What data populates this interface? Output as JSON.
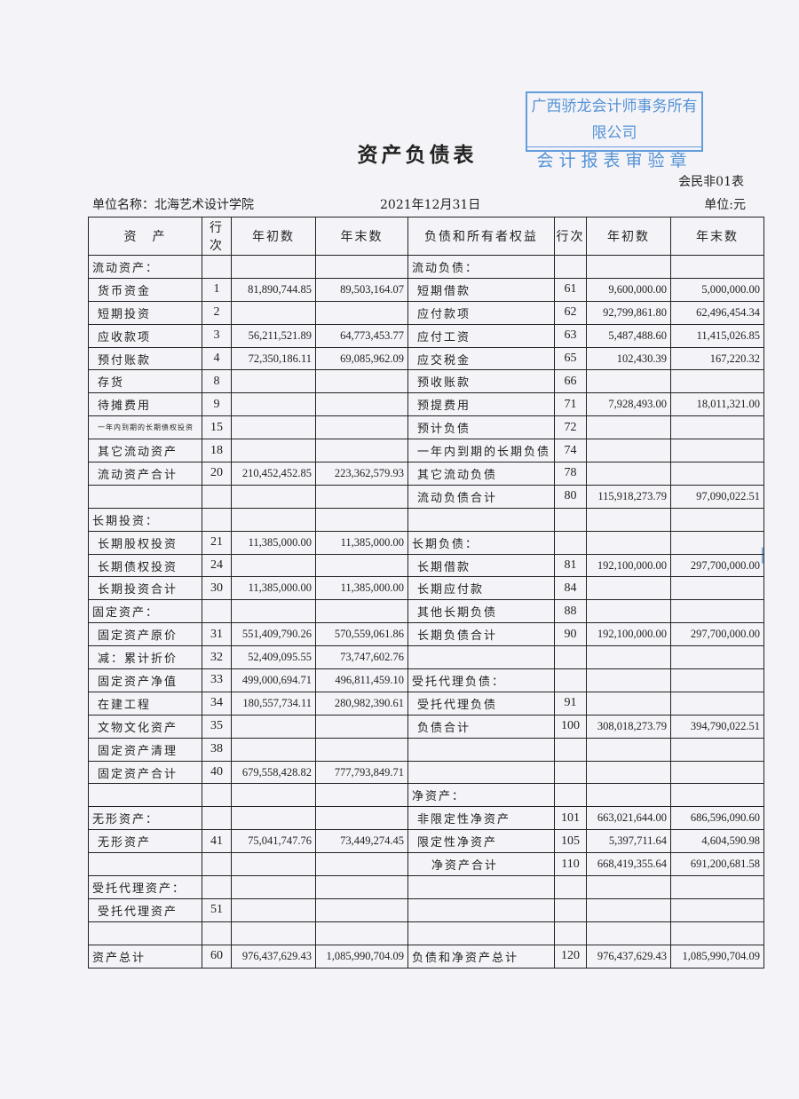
{
  "header": {
    "title": "资产负债表",
    "form_no": "会民非01表",
    "unit_name": "单位名称：北海艺术设计学院",
    "date": "2021年12月31日",
    "unit": "单位:元"
  },
  "stamp": {
    "line1": "广西骄龙会计师事务所有限公司",
    "line2": "会计报表审验章",
    "color": "#3a82d0"
  },
  "columns": [
    "资　产",
    "行次",
    "年初数",
    "年末数",
    "负债和所有者权益",
    "行次",
    "年初数",
    "年末数"
  ],
  "rows": [
    {
      "left": [
        "流动资产：",
        "",
        "",
        ""
      ],
      "right": [
        "流动负债：",
        "",
        "",
        ""
      ]
    },
    {
      "left": [
        "货币资金",
        "1",
        "81,890,744.85",
        "89,503,164.07"
      ],
      "right": [
        "短期借款",
        "61",
        "9,600,000.00",
        "5,000,000.00"
      ]
    },
    {
      "left": [
        "短期投资",
        "2",
        "",
        ""
      ],
      "right": [
        "应付款项",
        "62",
        "92,799,861.80",
        "62,496,454.34"
      ]
    },
    {
      "left": [
        "应收款项",
        "3",
        "56,211,521.89",
        "64,773,453.77"
      ],
      "right": [
        "应付工资",
        "63",
        "5,487,488.60",
        "11,415,026.85"
      ]
    },
    {
      "left": [
        "预付账款",
        "4",
        "72,350,186.11",
        "69,085,962.09"
      ],
      "right": [
        "应交税金",
        "65",
        "102,430.39",
        "167,220.32"
      ]
    },
    {
      "left": [
        "存货",
        "8",
        "",
        ""
      ],
      "right": [
        "预收账款",
        "66",
        "",
        ""
      ]
    },
    {
      "left": [
        "待摊费用",
        "9",
        "",
        ""
      ],
      "right": [
        "预提费用",
        "71",
        "7,928,493.00",
        "18,011,321.00"
      ]
    },
    {
      "left": [
        "一年内到期的长期债权投资",
        "15",
        "",
        ""
      ],
      "right": [
        "预计负债",
        "72",
        "",
        ""
      ]
    },
    {
      "left": [
        "其它流动资产",
        "18",
        "",
        ""
      ],
      "right": [
        "一年内到期的长期负债",
        "74",
        "",
        ""
      ]
    },
    {
      "left": [
        "流动资产合计",
        "20",
        "210,452,452.85",
        "223,362,579.93"
      ],
      "right": [
        "其它流动负债",
        "78",
        "",
        ""
      ]
    },
    {
      "left": [
        "",
        "",
        "",
        ""
      ],
      "right": [
        "流动负债合计",
        "80",
        "115,918,273.79",
        "97,090,022.51"
      ]
    },
    {
      "left": [
        "长期投资：",
        "",
        "",
        ""
      ],
      "right": [
        "",
        "",
        "",
        ""
      ]
    },
    {
      "left": [
        "长期股权投资",
        "21",
        "11,385,000.00",
        "11,385,000.00"
      ],
      "right": [
        "长期负债：",
        "",
        "",
        ""
      ]
    },
    {
      "left": [
        "长期债权投资",
        "24",
        "",
        ""
      ],
      "right": [
        "长期借款",
        "81",
        "192,100,000.00",
        "297,700,000.00"
      ]
    },
    {
      "left": [
        "长期投资合计",
        "30",
        "11,385,000.00",
        "11,385,000.00"
      ],
      "right": [
        "长期应付款",
        "84",
        "",
        ""
      ]
    },
    {
      "left": [
        "固定资产：",
        "",
        "",
        ""
      ],
      "right": [
        "其他长期负债",
        "88",
        "",
        ""
      ]
    },
    {
      "left": [
        "固定资产原价",
        "31",
        "551,409,790.26",
        "570,559,061.86"
      ],
      "right": [
        "长期负债合计",
        "90",
        "192,100,000.00",
        "297,700,000.00"
      ]
    },
    {
      "left": [
        "减：累计折价",
        "32",
        "52,409,095.55",
        "73,747,602.76"
      ],
      "right": [
        "",
        "",
        "",
        ""
      ]
    },
    {
      "left": [
        "固定资产净值",
        "33",
        "499,000,694.71",
        "496,811,459.10"
      ],
      "right": [
        "受托代理负债：",
        "",
        "",
        ""
      ]
    },
    {
      "left": [
        "在建工程",
        "34",
        "180,557,734.11",
        "280,982,390.61"
      ],
      "right": [
        "受托代理负债",
        "91",
        "",
        ""
      ]
    },
    {
      "left": [
        "文物文化资产",
        "35",
        "",
        ""
      ],
      "right": [
        "负债合计",
        "100",
        "308,018,273.79",
        "394,790,022.51"
      ]
    },
    {
      "left": [
        "固定资产清理",
        "38",
        "",
        ""
      ],
      "right": [
        "",
        "",
        "",
        ""
      ]
    },
    {
      "left": [
        "固定资产合计",
        "40",
        "679,558,428.82",
        "777,793,849.71"
      ],
      "right": [
        "",
        "",
        "",
        ""
      ]
    },
    {
      "left": [
        "",
        "",
        "",
        ""
      ],
      "right": [
        "净资产：",
        "",
        "",
        ""
      ]
    },
    {
      "left": [
        "无形资产：",
        "",
        "",
        ""
      ],
      "right": [
        "非限定性净资产",
        "101",
        "663,021,644.00",
        "686,596,090.60"
      ]
    },
    {
      "left": [
        "无形资产",
        "41",
        "75,041,747.76",
        "73,449,274.45"
      ],
      "right": [
        "限定性净资产",
        "105",
        "5,397,711.64",
        "4,604,590.98"
      ]
    },
    {
      "left": [
        "",
        "",
        "",
        ""
      ],
      "right": [
        "净资产合计",
        "110",
        "668,419,355.64",
        "691,200,681.58"
      ]
    },
    {
      "left": [
        "受托代理资产：",
        "",
        "",
        ""
      ],
      "right": [
        "",
        "",
        "",
        ""
      ]
    },
    {
      "left": [
        "受托代理资产",
        "51",
        "",
        ""
      ],
      "right": [
        "",
        "",
        "",
        ""
      ]
    },
    {
      "left": [
        "",
        "",
        "",
        ""
      ],
      "right": [
        "",
        "",
        "",
        ""
      ]
    },
    {
      "left": [
        "资产总计",
        "60",
        "976,437,629.43",
        "1,085,990,704.09"
      ],
      "right": [
        "负债和净资产总计",
        "120",
        "976,437,629.43",
        "1,085,990,704.09"
      ]
    }
  ]
}
